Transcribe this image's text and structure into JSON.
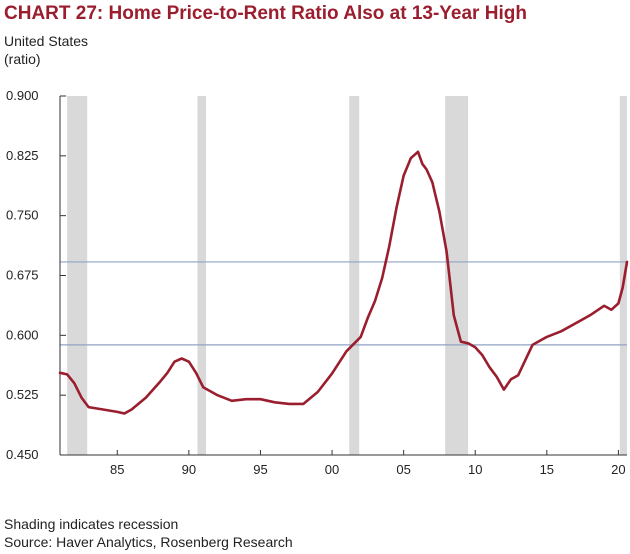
{
  "chart_data": {
    "type": "line",
    "title": "CHART 27: Home Price-to-Rent Ratio Also at 13-Year High",
    "subtitle": [
      "United States",
      "(ratio)"
    ],
    "xlabel": "",
    "ylabel": "",
    "xlim": [
      1981.0,
      2020.6
    ],
    "ylim": [
      0.45,
      0.9
    ],
    "y_ticks": [
      0.45,
      0.525,
      0.6,
      0.675,
      0.75,
      0.825,
      0.9
    ],
    "y_tick_labels": [
      "0.450",
      "0.525",
      "0.600",
      "0.675",
      "0.750",
      "0.825",
      "0.900"
    ],
    "x_ticks": [
      1985,
      1990,
      1995,
      2000,
      2005,
      2010,
      2015,
      2020
    ],
    "x_tick_labels": [
      "85",
      "90",
      "95",
      "00",
      "05",
      "10",
      "15",
      "20"
    ],
    "grid": false,
    "recessions": [
      [
        1981.5,
        1982.9
      ],
      [
        1990.6,
        1991.2
      ],
      [
        2001.2,
        2001.9
      ],
      [
        2007.9,
        2009.5
      ],
      [
        2020.1,
        2020.6
      ]
    ],
    "reference_lines": [
      0.692,
      0.588
    ],
    "colors": {
      "line": "#9a1e2e",
      "reference": "#8fa3c4",
      "recession": "#d9d9d9",
      "title": "#9a1e2e"
    },
    "series": [
      {
        "x": [
          1981.0,
          1981.5,
          1982.0,
          1982.5,
          1983.0,
          1984.0,
          1985.0,
          1985.5,
          1986.0,
          1987.0,
          1988.0,
          1988.5,
          1989.0,
          1989.5,
          1990.0,
          1990.5,
          1991.0,
          1992.0,
          1993.0,
          1994.0,
          1995.0,
          1996.0,
          1997.0,
          1998.0,
          1999.0,
          2000.0,
          2001.0,
          2002.0,
          2002.5,
          2003.0,
          2003.5,
          2004.0,
          2004.5,
          2005.0,
          2005.5,
          2006.0,
          2006.3,
          2006.6,
          2007.0,
          2007.5,
          2008.0,
          2008.5,
          2009.0,
          2009.5,
          2010.0,
          2010.5,
          2011.0,
          2011.5,
          2012.0,
          2012.5,
          2013.0,
          2014.0,
          2015.0,
          2016.0,
          2017.0,
          2018.0,
          2019.0,
          2019.5,
          2020.0,
          2020.3,
          2020.6
        ],
        "values": [
          0.553,
          0.551,
          0.54,
          0.522,
          0.51,
          0.507,
          0.504,
          0.502,
          0.507,
          0.522,
          0.542,
          0.553,
          0.567,
          0.571,
          0.567,
          0.553,
          0.535,
          0.525,
          0.518,
          0.52,
          0.52,
          0.516,
          0.514,
          0.514,
          0.529,
          0.552,
          0.58,
          0.598,
          0.622,
          0.643,
          0.672,
          0.712,
          0.76,
          0.8,
          0.822,
          0.83,
          0.815,
          0.808,
          0.792,
          0.755,
          0.705,
          0.625,
          0.592,
          0.59,
          0.585,
          0.575,
          0.56,
          0.548,
          0.532,
          0.545,
          0.55,
          0.588,
          0.598,
          0.605,
          0.615,
          0.625,
          0.637,
          0.632,
          0.64,
          0.66,
          0.692
        ]
      }
    ]
  },
  "footer": {
    "note": "Shading indicates recession",
    "source": "Source: Haver Analytics, Rosenberg Research"
  }
}
